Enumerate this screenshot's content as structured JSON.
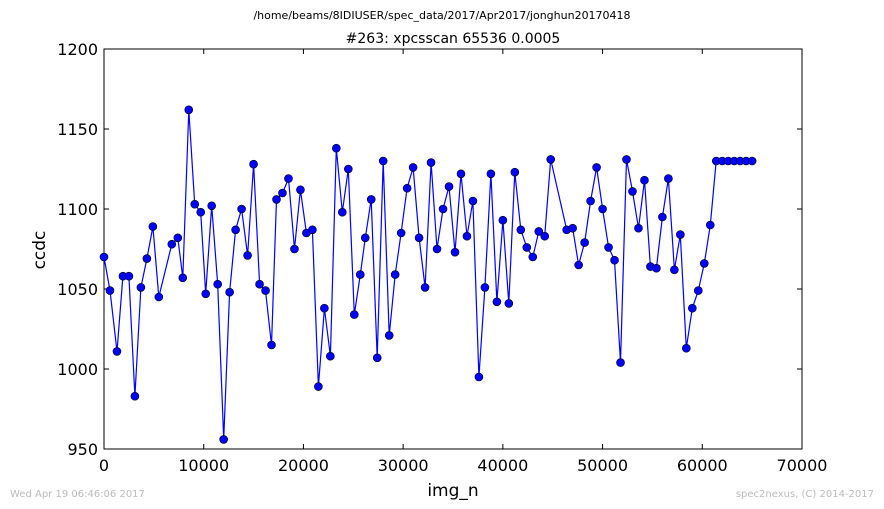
{
  "header": {
    "path": "/home/beams/8IDIUSER/spec_data/2017/Apr2017/jonghun20170418"
  },
  "footer": {
    "timestamp": "Wed Apr 19 06:46:06 2017",
    "credit": "spec2nexus, (C) 2014-2017"
  },
  "colors": {
    "series": "#0000ff",
    "footer_text": "#bbbbbb"
  },
  "chart_data": {
    "type": "line",
    "title": "#263: xpcsscan 65536 0.0005",
    "xlabel": "img_n",
    "ylabel": "ccdc",
    "xlim": [
      0,
      70000
    ],
    "ylim": [
      950,
      1200
    ],
    "xticks": [
      0,
      10000,
      20000,
      30000,
      40000,
      50000,
      60000,
      70000
    ],
    "yticks": [
      950,
      1000,
      1050,
      1100,
      1150,
      1200
    ],
    "grid": false,
    "markers": "circle",
    "series": [
      {
        "x": [
          0,
          600,
          1300,
          1900,
          2500,
          3100,
          3700,
          4300,
          4900,
          5500,
          6800,
          7400,
          7900,
          8500,
          9100,
          9700,
          10200,
          10800,
          11400,
          12000,
          12600,
          13200,
          13800,
          14400,
          15000,
          15600,
          16200,
          16800,
          17300,
          17900,
          18500,
          19100,
          19700,
          20300,
          20900,
          21500,
          22100,
          22700,
          23300,
          23900,
          24500,
          25100,
          25700,
          26200,
          26800,
          27400,
          28000,
          28600,
          29200,
          29800,
          30400,
          31000,
          31600,
          32200,
          32800,
          33400,
          34000,
          34600,
          35200,
          35800,
          36400,
          37000,
          37600,
          38200,
          38800,
          39400,
          40000,
          40600,
          41200,
          41800,
          42400,
          43000,
          43600,
          44200,
          44800,
          46400,
          47000,
          47600,
          48200,
          48800,
          49400,
          50000,
          50600,
          51200,
          51800,
          52400,
          53000,
          53600,
          54200,
          54800,
          55400,
          56000,
          56600,
          57200,
          57800,
          58400,
          59000,
          59600,
          60200,
          60800,
          61400,
          62000,
          62600,
          63200,
          63800,
          64400,
          65000
        ],
        "y": [
          1070,
          1049,
          1011,
          1058,
          1058,
          983,
          1051,
          1069,
          1089,
          1045,
          1078,
          1082,
          1057,
          1162,
          1103,
          1098,
          1047,
          1102,
          1053,
          956,
          1048,
          1087,
          1100,
          1071,
          1128,
          1053,
          1049,
          1015,
          1106,
          1110,
          1119,
          1075,
          1112,
          1085,
          1087,
          989,
          1038,
          1008,
          1138,
          1098,
          1125,
          1034,
          1059,
          1082,
          1106,
          1007,
          1130,
          1021,
          1059,
          1085,
          1113,
          1126,
          1082,
          1051,
          1129,
          1075,
          1100,
          1114,
          1073,
          1122,
          1083,
          1105,
          995,
          1051,
          1122,
          1042,
          1093,
          1041,
          1123,
          1087,
          1076,
          1070,
          1086,
          1083,
          1131,
          1087,
          1088,
          1065,
          1079,
          1105,
          1126,
          1100,
          1076,
          1068,
          1004,
          1131,
          1111,
          1088,
          1118,
          1064,
          1063,
          1095,
          1119,
          1062,
          1084,
          1013,
          1038,
          1049,
          1066,
          1090,
          1130,
          1130,
          1130,
          1130,
          1130,
          1130,
          1130
        ]
      }
    ]
  }
}
